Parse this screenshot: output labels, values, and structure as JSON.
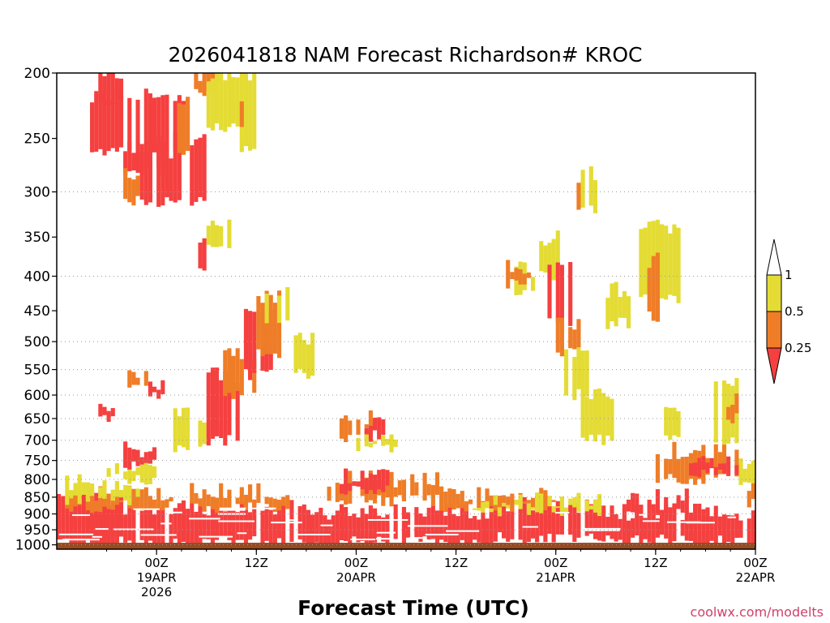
{
  "colors": {
    "background": "#ffffff",
    "red": "#f54040",
    "orange": "#ef7d27",
    "yellow": "#e4dc34",
    "ground": "#964b22",
    "grid": "#999999"
  },
  "chart_data": {
    "type": "heatmap",
    "title": "2026041818 NAM Forecast Richardson# KROC",
    "xlabel": "Forecast Time (UTC)",
    "ylabel": "",
    "credit": "coolwx.com/modelts",
    "y_axis": {
      "unit": "hPa",
      "range": [
        200,
        1015
      ],
      "ticks": [
        200,
        250,
        300,
        350,
        400,
        450,
        500,
        550,
        600,
        650,
        700,
        750,
        800,
        850,
        900,
        950,
        1000
      ],
      "dotted_gridlines": [
        300,
        400,
        500,
        550,
        600,
        650,
        700,
        750,
        800,
        850,
        900,
        950,
        1000
      ]
    },
    "x_axis": {
      "unit": "forecast hour",
      "range": [
        -6,
        78
      ],
      "ticks": [
        {
          "hour": 6,
          "lines": [
            "00Z",
            "19APR",
            "2026"
          ]
        },
        {
          "hour": 18,
          "lines": [
            "12Z"
          ]
        },
        {
          "hour": 30,
          "lines": [
            "00Z",
            "20APR"
          ]
        },
        {
          "hour": 42,
          "lines": [
            "12Z"
          ]
        },
        {
          "hour": 54,
          "lines": [
            "00Z",
            "21APR"
          ]
        },
        {
          "hour": 66,
          "lines": [
            "12Z"
          ]
        },
        {
          "hour": 78,
          "lines": [
            "00Z",
            "22APR"
          ]
        }
      ]
    },
    "legend": {
      "placement": "right",
      "thresholds": [
        "1",
        "0.5",
        "0.25"
      ],
      "categories": [
        {
          "range": "< 0.25",
          "color": "#f54040"
        },
        {
          "range": "0.25 - 0.5",
          "color": "#ef7d27"
        },
        {
          "range": "0.5 - 1",
          "color": "#e4dc34"
        }
      ]
    },
    "ground_layer": {
      "from_hPa": 993,
      "to_hPa": 1015,
      "color": "#964b22"
    },
    "regions": [
      {
        "cat": "red",
        "hours": [
          -2,
          26
        ],
        "p": [
          880,
          990
        ]
      },
      {
        "cat": "red",
        "hours": [
          26,
          46
        ],
        "p": [
          895,
          990
        ]
      },
      {
        "cat": "red",
        "hours": [
          46,
          55
        ],
        "p": [
          868,
          975
        ]
      },
      {
        "cat": "red",
        "hours": [
          55,
          60
        ],
        "p": [
          880,
          975
        ]
      },
      {
        "cat": "red",
        "hours": [
          60,
          76
        ],
        "p": [
          895,
          985
        ]
      },
      {
        "cat": "red",
        "hours": [
          76,
          84
        ],
        "p": [
          900,
          990
        ]
      },
      {
        "cat": "red",
        "hours": [
          -6,
          2
        ],
        "p": [
          860,
          990
        ]
      },
      {
        "cat": "orange",
        "hours": [
          -5,
          8
        ],
        "p": [
          840,
          880
        ]
      },
      {
        "cat": "yellow",
        "hours": [
          -5,
          4
        ],
        "p": [
          810,
          860
        ]
      },
      {
        "cat": "orange",
        "hours": [
          10,
          22
        ],
        "p": [
          835,
          880
        ]
      },
      {
        "cat": "orange",
        "hours": [
          26,
          40
        ],
        "p": [
          800,
          860
        ]
      },
      {
        "cat": "red",
        "hours": [
          28,
          34
        ],
        "p": [
          790,
          830
        ]
      },
      {
        "cat": "orange",
        "hours": [
          40,
          54
        ],
        "p": [
          840,
          880
        ]
      },
      {
        "cat": "yellow",
        "hours": [
          44,
          60
        ],
        "p": [
          860,
          890
        ]
      },
      {
        "cat": "red",
        "hours": [
          62,
          70
        ],
        "p": [
          850,
          895
        ]
      },
      {
        "cat": "orange",
        "hours": [
          66,
          76
        ],
        "p": [
          725,
          800
        ]
      },
      {
        "cat": "red",
        "hours": [
          70,
          76
        ],
        "p": [
          745,
          780
        ]
      },
      {
        "cat": "yellow",
        "hours": [
          76,
          84
        ],
        "p": [
          760,
          820
        ]
      },
      {
        "cat": "orange",
        "hours": [
          77,
          83
        ],
        "p": [
          820,
          870
        ]
      },
      {
        "cat": "yellow",
        "hours": [
          0,
          6
        ],
        "p": [
          760,
          800
        ]
      },
      {
        "cat": "red",
        "hours": [
          2,
          6
        ],
        "p": [
          720,
          760
        ]
      },
      {
        "cat": "yellow",
        "hours": [
          8,
          12
        ],
        "p": [
          640,
          720
        ]
      },
      {
        "cat": "red",
        "hours": [
          12,
          16
        ],
        "p": [
          560,
          700
        ]
      },
      {
        "cat": "orange",
        "hours": [
          14,
          18
        ],
        "p": [
          520,
          600
        ]
      },
      {
        "cat": "red",
        "hours": [
          16,
          20
        ],
        "p": [
          460,
          560
        ]
      },
      {
        "cat": "orange",
        "hours": [
          18,
          21
        ],
        "p": [
          430,
          520
        ]
      },
      {
        "cat": "yellow",
        "hours": [
          19,
          22
        ],
        "p": [
          420,
          470
        ]
      },
      {
        "cat": "yellow",
        "hours": [
          22,
          25
        ],
        "p": [
          500,
          560
        ]
      },
      {
        "cat": "orange",
        "hours": [
          28,
          32
        ],
        "p": [
          650,
          700
        ]
      },
      {
        "cat": "red",
        "hours": [
          31,
          34
        ],
        "p": [
          660,
          690
        ]
      },
      {
        "cat": "yellow",
        "hours": [
          30,
          35
        ],
        "p": [
          700,
          720
        ]
      },
      {
        "cat": "yellow",
        "hours": [
          49,
          52
        ],
        "p": [
          390,
          420
        ]
      },
      {
        "cat": "orange",
        "hours": [
          48,
          51
        ],
        "p": [
          390,
          410
        ]
      },
      {
        "cat": "yellow",
        "hours": [
          52,
          55
        ],
        "p": [
          350,
          400
        ]
      },
      {
        "cat": "red",
        "hours": [
          53,
          56
        ],
        "p": [
          390,
          470
        ]
      },
      {
        "cat": "orange",
        "hours": [
          54,
          57
        ],
        "p": [
          470,
          520
        ]
      },
      {
        "cat": "yellow",
        "hours": [
          55,
          58
        ],
        "p": [
          520,
          600
        ]
      },
      {
        "cat": "yellow",
        "hours": [
          57,
          61
        ],
        "p": [
          600,
          700
        ]
      },
      {
        "cat": "yellow",
        "hours": [
          57,
          59
        ],
        "p": [
          280,
          320
        ]
      },
      {
        "cat": "orange",
        "hours": [
          56,
          57
        ],
        "p": [
          295,
          320
        ]
      },
      {
        "cat": "yellow",
        "hours": [
          60,
          63
        ],
        "p": [
          420,
          470
        ]
      },
      {
        "cat": "yellow",
        "hours": [
          64,
          69
        ],
        "p": [
          340,
          430
        ]
      },
      {
        "cat": "orange",
        "hours": [
          65,
          67
        ],
        "p": [
          380,
          460
        ]
      },
      {
        "cat": "yellow",
        "hours": [
          66,
          69
        ],
        "p": [
          640,
          700
        ]
      },
      {
        "cat": "yellow",
        "hours": [
          73,
          76
        ],
        "p": [
          580,
          700
        ]
      },
      {
        "cat": "orange",
        "hours": [
          74,
          76
        ],
        "p": [
          610,
          650
        ]
      },
      {
        "cat": "yellow",
        "hours": [
          80,
          83
        ],
        "p": [
          460,
          470
        ]
      },
      {
        "cat": "yellow",
        "hours": [
          78,
          82
        ],
        "p": [
          450,
          480
        ]
      },
      {
        "cat": "orange",
        "hours": [
          79,
          84
        ],
        "p": [
          545,
          565
        ]
      },
      {
        "cat": "yellow",
        "hours": [
          78,
          84
        ],
        "p": [
          540,
          580
        ]
      },
      {
        "cat": "yellow",
        "hours": [
          79,
          83
        ],
        "p": [
          615,
          650
        ]
      },
      {
        "cat": "red",
        "hours": [
          -2,
          10
        ],
        "p": [
          215,
          260
        ]
      },
      {
        "cat": "red",
        "hours": [
          -1,
          2
        ],
        "p": [
          200,
          220
        ]
      },
      {
        "cat": "red",
        "hours": [
          2,
          7
        ],
        "p": [
          255,
          280
        ]
      },
      {
        "cat": "orange",
        "hours": [
          2,
          4
        ],
        "p": [
          280,
          310
        ]
      },
      {
        "cat": "red",
        "hours": [
          4,
          8
        ],
        "p": [
          260,
          310
        ]
      },
      {
        "cat": "red",
        "hours": [
          8,
          12
        ],
        "p": [
          250,
          310
        ]
      },
      {
        "cat": "orange",
        "hours": [
          10,
          13
        ],
        "p": [
          200,
          215
        ]
      },
      {
        "cat": "orange",
        "hours": [
          8,
          10
        ],
        "p": [
          220,
          260
        ]
      },
      {
        "cat": "yellow",
        "hours": [
          12,
          16
        ],
        "p": [
          200,
          240
        ]
      },
      {
        "cat": "yellow",
        "hours": [
          16,
          18
        ],
        "p": [
          200,
          260
        ]
      },
      {
        "cat": "orange",
        "hours": [
          16,
          17
        ],
        "p": [
          220,
          240
        ]
      },
      {
        "cat": "yellow",
        "hours": [
          12,
          15
        ],
        "p": [
          330,
          360
        ]
      },
      {
        "cat": "red",
        "hours": [
          10,
          12
        ],
        "p": [
          350,
          390
        ]
      },
      {
        "cat": "red",
        "hours": [
          -1,
          1
        ],
        "p": [
          630,
          650
        ]
      },
      {
        "cat": "orange",
        "hours": [
          2,
          5
        ],
        "p": [
          560,
          590
        ]
      },
      {
        "cat": "red",
        "hours": [
          5,
          7
        ],
        "p": [
          580,
          600
        ]
      }
    ],
    "scatter_seed": 20260418
  }
}
